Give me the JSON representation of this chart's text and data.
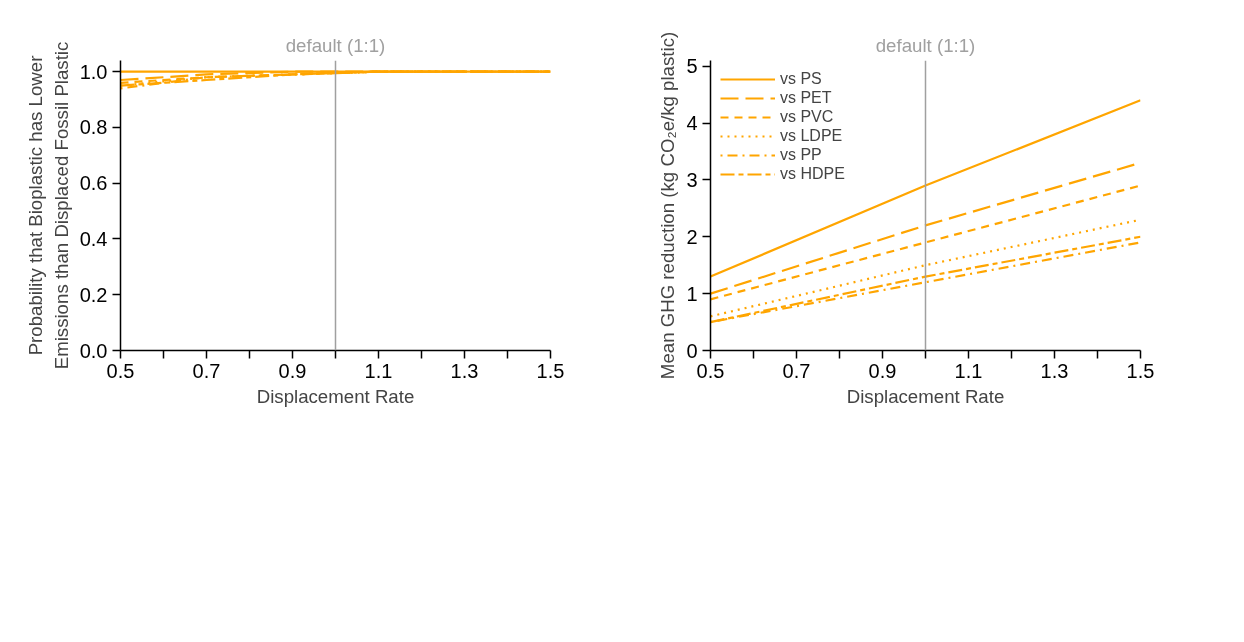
{
  "chart_data": [
    {
      "type": "line",
      "ylabel": "Probability that Bioplastic has Lower\nEmissions than Displaced Fossil Plastic",
      "xlabel": "Displacement Rate",
      "x": [
        0.5,
        0.7,
        0.9,
        1.1,
        1.3,
        1.5
      ],
      "xlim": [
        0.5,
        1.5
      ],
      "ylim": [
        0,
        1.04
      ],
      "xticks": [
        {
          "value": 0.5,
          "label": "0.5"
        },
        {
          "value": 0.6,
          "label": null
        },
        {
          "value": 0.7,
          "label": "0.7"
        },
        {
          "value": 0.8,
          "label": null
        },
        {
          "value": 0.9,
          "label": "0.9"
        },
        {
          "value": 1.0,
          "label": null
        },
        {
          "value": 1.1,
          "label": "1.1"
        },
        {
          "value": 1.2,
          "label": null
        },
        {
          "value": 1.3,
          "label": "1.3"
        },
        {
          "value": 1.4,
          "label": null
        },
        {
          "value": 1.5,
          "label": "1.5"
        }
      ],
      "yticks": [
        {
          "value": 0,
          "label": "0.0"
        },
        {
          "value": 0.2,
          "label": "0.2"
        },
        {
          "value": 0.4,
          "label": "0.4"
        },
        {
          "value": 0.6,
          "label": "0.6"
        },
        {
          "value": 0.8,
          "label": "0.8"
        },
        {
          "value": 1.0,
          "label": "1.0"
        }
      ],
      "ref_lines": [
        {
          "axis": "x",
          "value": 1.0,
          "label": "default (1:1)",
          "color": "#a0a0a0"
        }
      ],
      "grid": false,
      "series": [
        {
          "color": "#ffa500",
          "line_style": "solid",
          "values": [
            1.0,
            1.0,
            1.0,
            1.0,
            1.0,
            1.0
          ]
        },
        {
          "color": "#ffa500",
          "line_style": "longdash",
          "values": [
            0.97,
            0.99,
            1.0,
            1.0,
            1.0,
            1.0
          ]
        },
        {
          "color": "#ffa500",
          "line_style": "dashed",
          "values": [
            0.96,
            0.98,
            0.99,
            1.0,
            1.0,
            1.0
          ]
        },
        {
          "color": "#ffa500",
          "line_style": "dotted",
          "values": [
            0.95,
            0.98,
            0.99,
            1.0,
            1.0,
            1.0
          ]
        },
        {
          "color": "#ffa500",
          "line_style": "dashdot",
          "values": [
            0.94,
            0.98,
            0.99,
            1.0,
            1.0,
            1.0
          ]
        },
        {
          "color": "#ffa500",
          "line_style": "twodash",
          "values": [
            0.95,
            0.97,
            0.99,
            1.0,
            1.0,
            1.0
          ]
        }
      ]
    },
    {
      "type": "line",
      "ylabel": "Mean GHG reduction (kg CO₂e/kg plastic)",
      "xlabel": "Displacement Rate",
      "x": [
        0.5,
        1.0,
        1.5
      ],
      "xlim": [
        0.5,
        1.5
      ],
      "ylim": [
        0,
        5.1
      ],
      "xticks": [
        {
          "value": 0.5,
          "label": "0.5"
        },
        {
          "value": 0.6,
          "label": null
        },
        {
          "value": 0.7,
          "label": "0.7"
        },
        {
          "value": 0.8,
          "label": null
        },
        {
          "value": 0.9,
          "label": "0.9"
        },
        {
          "value": 1.0,
          "label": null
        },
        {
          "value": 1.1,
          "label": "1.1"
        },
        {
          "value": 1.2,
          "label": null
        },
        {
          "value": 1.3,
          "label": "1.3"
        },
        {
          "value": 1.4,
          "label": null
        },
        {
          "value": 1.5,
          "label": "1.5"
        }
      ],
      "yticks": [
        0,
        1,
        2,
        3,
        4,
        5
      ],
      "ref_lines": [
        {
          "axis": "x",
          "value": 1.0,
          "label": "default (1:1)",
          "color": "#a0a0a0"
        }
      ],
      "grid": false,
      "legend": "top left",
      "series": [
        {
          "name": "vs PS",
          "color": "#ffa500",
          "line_style": "solid",
          "values": [
            1.3,
            2.9,
            4.4
          ]
        },
        {
          "name": "vs PET",
          "color": "#ffa500",
          "line_style": "longdash",
          "values": [
            1.0,
            2.2,
            3.3
          ]
        },
        {
          "name": "vs PVC",
          "color": "#ffa500",
          "line_style": "dashed",
          "values": [
            0.9,
            1.9,
            2.9
          ]
        },
        {
          "name": "vs LDPE",
          "color": "#ffa500",
          "line_style": "dotted",
          "values": [
            0.6,
            1.5,
            2.3
          ]
        },
        {
          "name": "vs PP",
          "color": "#ffa500",
          "line_style": "dashdot",
          "values": [
            0.5,
            1.2,
            1.9
          ]
        },
        {
          "name": "vs HDPE",
          "color": "#ffa500",
          "line_style": "twodash",
          "values": [
            0.5,
            1.3,
            2.0
          ]
        }
      ]
    }
  ]
}
